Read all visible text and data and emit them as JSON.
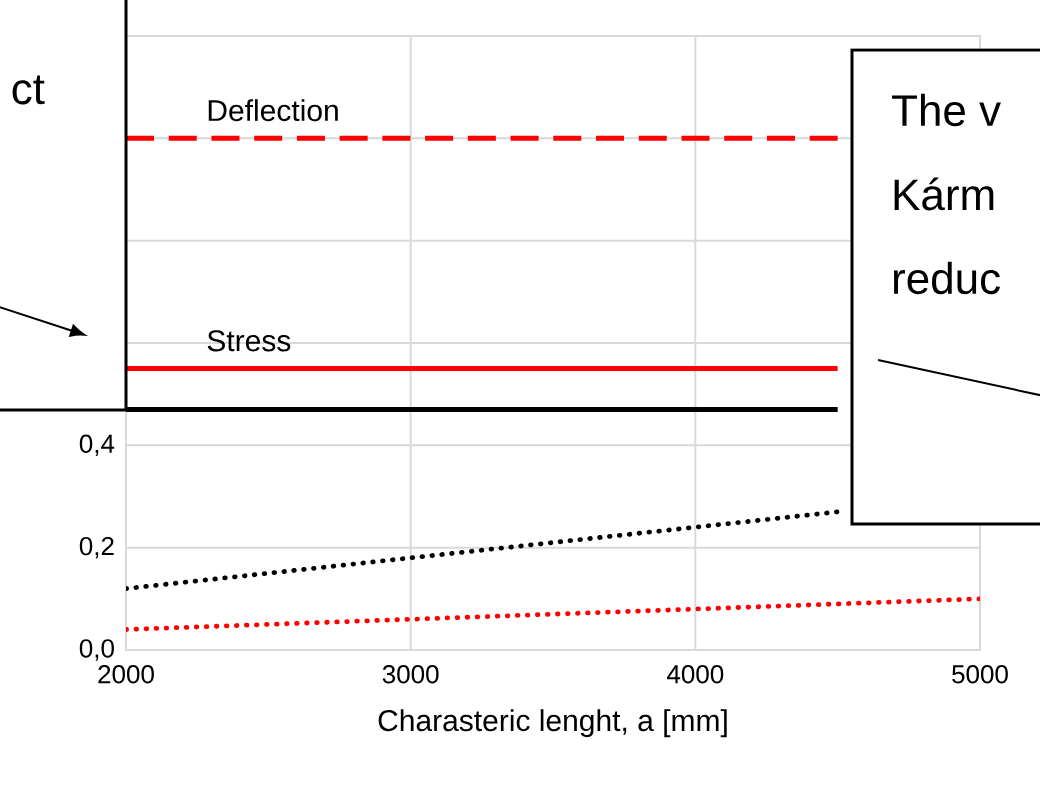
{
  "chart_data": {
    "type": "line",
    "xlabel": "Charasteric lenght, a [mm]",
    "xlim": [
      2000,
      5000
    ],
    "xticks": [
      2000,
      3000,
      4000,
      5000
    ],
    "ylim": [
      0,
      1.2
    ],
    "yticks": [
      {
        "value": 0,
        "label": "0,0"
      },
      {
        "value": 0.2,
        "label": "0,2"
      },
      {
        "value": 0.4,
        "label": "0,4"
      },
      {
        "value": 0.6,
        "label": null
      },
      {
        "value": 0.8,
        "label": null
      },
      {
        "value": 1.0,
        "label": null
      },
      {
        "value": 1.2,
        "label": null
      }
    ],
    "grid": true,
    "marker": "none",
    "series": [
      {
        "name": "Deflection",
        "color": "#ff0000",
        "line_style": "dashed",
        "x": [
          2000,
          4500
        ],
        "values": [
          1.0,
          1.0
        ]
      },
      {
        "name": "Stress",
        "color": "#ff0000",
        "line_style": "solid",
        "x": [
          2000,
          4500
        ],
        "values": [
          0.55,
          0.55
        ]
      },
      {
        "color": "#000000",
        "line_style": "solid",
        "x": [
          2000,
          4500
        ],
        "values": [
          0.47,
          0.47
        ]
      },
      {
        "color": "#000000",
        "line_style": "dotted",
        "x": [
          2000,
          3000,
          4000,
          4500
        ],
        "values": [
          0.12,
          0.18,
          0.24,
          0.27
        ]
      },
      {
        "color": "#ff0000",
        "line_style": "dotted",
        "x": [
          2000,
          3000,
          4000,
          5000
        ],
        "values": [
          0.04,
          0.06,
          0.08,
          0.1
        ]
      }
    ],
    "annotations": [
      "ct",
      "The v",
      "Kárm",
      "reduc"
    ]
  }
}
